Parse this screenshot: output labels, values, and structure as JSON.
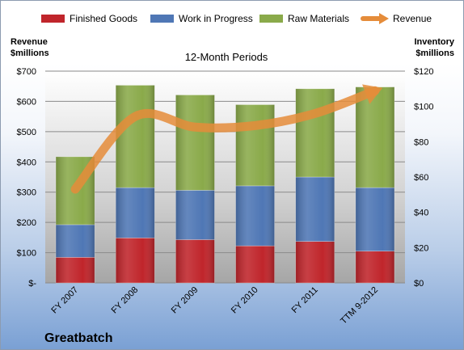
{
  "chart_data": {
    "type": "bar",
    "subtitle": "12-Month Periods",
    "footer_label": "Greatbatch",
    "categories": [
      "FY 2007",
      "FY 2008",
      "FY 2009",
      "FY 2010",
      "FY 2011",
      "TTM 9-2012"
    ],
    "series": [
      {
        "name": "Finished Goods",
        "axis": "right",
        "color": "#c0252b",
        "values": [
          14.5,
          25.5,
          24.5,
          21,
          23.5,
          18
        ]
      },
      {
        "name": "Work in Progress",
        "axis": "right",
        "color": "#4f77b5",
        "values": [
          18.5,
          28.5,
          28,
          34,
          36.5,
          36
        ]
      },
      {
        "name": "Raw Materials",
        "axis": "right",
        "color": "#8aaa4a",
        "values": [
          38.5,
          58,
          54,
          46,
          50,
          57
        ]
      }
    ],
    "line_series": {
      "name": "Revenue",
      "axis": "left",
      "color": "#e58c3a",
      "values": [
        310,
        550,
        515,
        520,
        560,
        635
      ]
    },
    "y_left": {
      "label_line1": "Revenue",
      "label_line2": "$millions",
      "min": 0,
      "max": 700,
      "ticks": [
        "$-",
        "$100",
        "$200",
        "$300",
        "$400",
        "$500",
        "$600",
        "$700"
      ]
    },
    "y_right": {
      "label_line1": "Inventory",
      "label_line2": "$millions",
      "min": 0,
      "max": 120,
      "ticks": [
        "$0",
        "$20",
        "$40",
        "$60",
        "$80",
        "$100",
        "$120"
      ]
    },
    "grid": true,
    "legend_position": "top"
  }
}
